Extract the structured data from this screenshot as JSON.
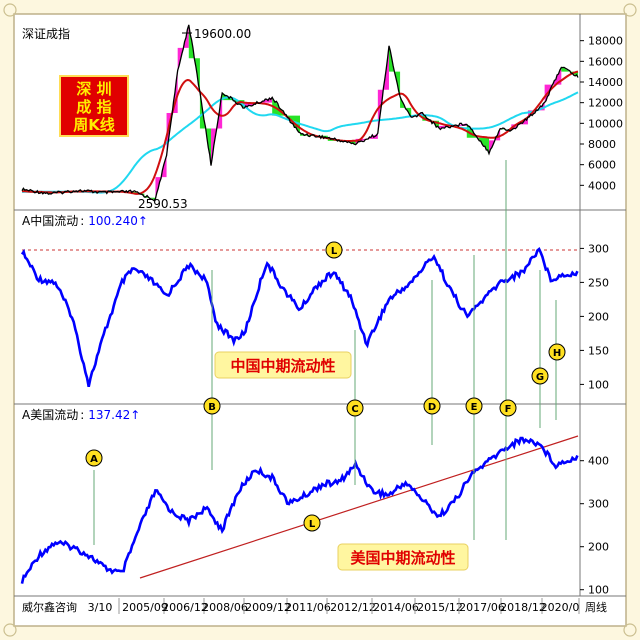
{
  "panel_top": {
    "title": "深证成指",
    "peak_label": "19600.00",
    "low_label": "2590.53",
    "badge_lines": [
      "深 圳",
      "成 指",
      "周K线"
    ],
    "badge_color": "#e00000",
    "badge_text_color": "#ffee00"
  },
  "panel_mid": {
    "label": "A中国流动",
    "value": "100.240",
    "arrow": "↑",
    "caption": "中国中期流动性"
  },
  "panel_bottom": {
    "label": "A美国流动",
    "value": "137.42",
    "arrow": "↑",
    "caption": "美国中期流动性"
  },
  "markers": [
    "A",
    "B",
    "C",
    "D",
    "E",
    "F",
    "G",
    "H"
  ],
  "l_marker": "L",
  "footer": {
    "left": "威尔鑫咨询",
    "dates": [
      "3/10",
      "2005/09",
      "2006/12",
      "2008/06",
      "2009/12",
      "2011/06",
      "2012/12",
      "2014/06",
      "2015/12",
      "2017/06",
      "2018/12",
      "2020/0"
    ],
    "right": "周线"
  },
  "colors": {
    "background": "#fdf7df",
    "line_blue": "#0000ff",
    "ma_red": "#d01010",
    "ma_cyan": "#20d8f0",
    "up_fill": "#ff10d0",
    "down_fill": "#10e010",
    "guide_green": "#66aa77",
    "marker_fill": "#ffe020"
  },
  "chart_data": [
    {
      "type": "line",
      "title": "深证成指",
      "annotations": [
        "19600.00",
        "2590.53"
      ],
      "yticks": [
        4000,
        6000,
        8000,
        10000,
        12000,
        14000,
        16000,
        18000
      ],
      "ylim": [
        2000,
        20000
      ],
      "series": [
        {
          "x": [
            0,
            0.05,
            0.1,
            0.15,
            0.2,
            0.22,
            0.24,
            0.26,
            0.28,
            0.3,
            0.32,
            0.34,
            0.36,
            0.4,
            0.45,
            0.5,
            0.55,
            0.6,
            0.64,
            0.66,
            0.68,
            0.7,
            0.72,
            0.75,
            0.8,
            0.84,
            0.86,
            0.88,
            0.91,
            0.94,
            0.97,
            1
          ],
          "values": [
            3600,
            3200,
            3500,
            3300,
            3400,
            3000,
            2590.53,
            7000,
            15000,
            19600,
            13000,
            6000,
            13000,
            11500,
            12500,
            9000,
            8600,
            8000,
            9000,
            17500,
            12500,
            10500,
            11000,
            9500,
            10000,
            7200,
            9500,
            9300,
            10500,
            12000,
            15500,
            14500
          ]
        }
      ]
    },
    {
      "type": "line",
      "title": "中国中期流动性",
      "annotations": [
        "A中国流动",
        "100.240"
      ],
      "yticks": [
        100,
        150,
        200,
        250,
        300
      ],
      "ylim": [
        80,
        330
      ],
      "series": [
        {
          "x": [
            0,
            0.03,
            0.06,
            0.09,
            0.12,
            0.15,
            0.18,
            0.2,
            0.23,
            0.26,
            0.3,
            0.33,
            0.35,
            0.38,
            0.4,
            0.44,
            0.47,
            0.5,
            0.53,
            0.56,
            0.59,
            0.62,
            0.66,
            0.7,
            0.74,
            0.77,
            0.8,
            0.83,
            0.86,
            0.9,
            0.93,
            0.95,
            0.97,
            1
          ],
          "values": [
            295,
            255,
            250,
            200,
            100.24,
            180,
            250,
            270,
            255,
            230,
            275,
            255,
            190,
            165,
            175,
            280,
            240,
            210,
            245,
            265,
            230,
            160,
            225,
            250,
            290,
            240,
            200,
            225,
            250,
            265,
            300,
            255,
            260,
            265
          ]
        }
      ]
    },
    {
      "type": "line",
      "title": "美国中期流动性",
      "annotations": [
        "A美国流动",
        "137.42"
      ],
      "yticks": [
        100,
        200,
        300,
        400
      ],
      "ylim": [
        90,
        490
      ],
      "series": [
        {
          "x": [
            0,
            0.03,
            0.06,
            0.09,
            0.12,
            0.15,
            0.18,
            0.21,
            0.24,
            0.27,
            0.3,
            0.33,
            0.36,
            0.39,
            0.42,
            0.45,
            0.48,
            0.51,
            0.54,
            0.57,
            0.6,
            0.63,
            0.66,
            0.69,
            0.72,
            0.75,
            0.78,
            0.81,
            0.84,
            0.87,
            0.9,
            0.93,
            0.96,
            1
          ],
          "values": [
            120,
            180,
            210,
            200,
            180,
            150,
            137.42,
            240,
            330,
            280,
            260,
            290,
            240,
            330,
            380,
            360,
            300,
            320,
            345,
            350,
            390,
            330,
            320,
            350,
            310,
            270,
            310,
            370,
            400,
            430,
            450,
            440,
            390,
            410
          ]
        }
      ]
    }
  ]
}
